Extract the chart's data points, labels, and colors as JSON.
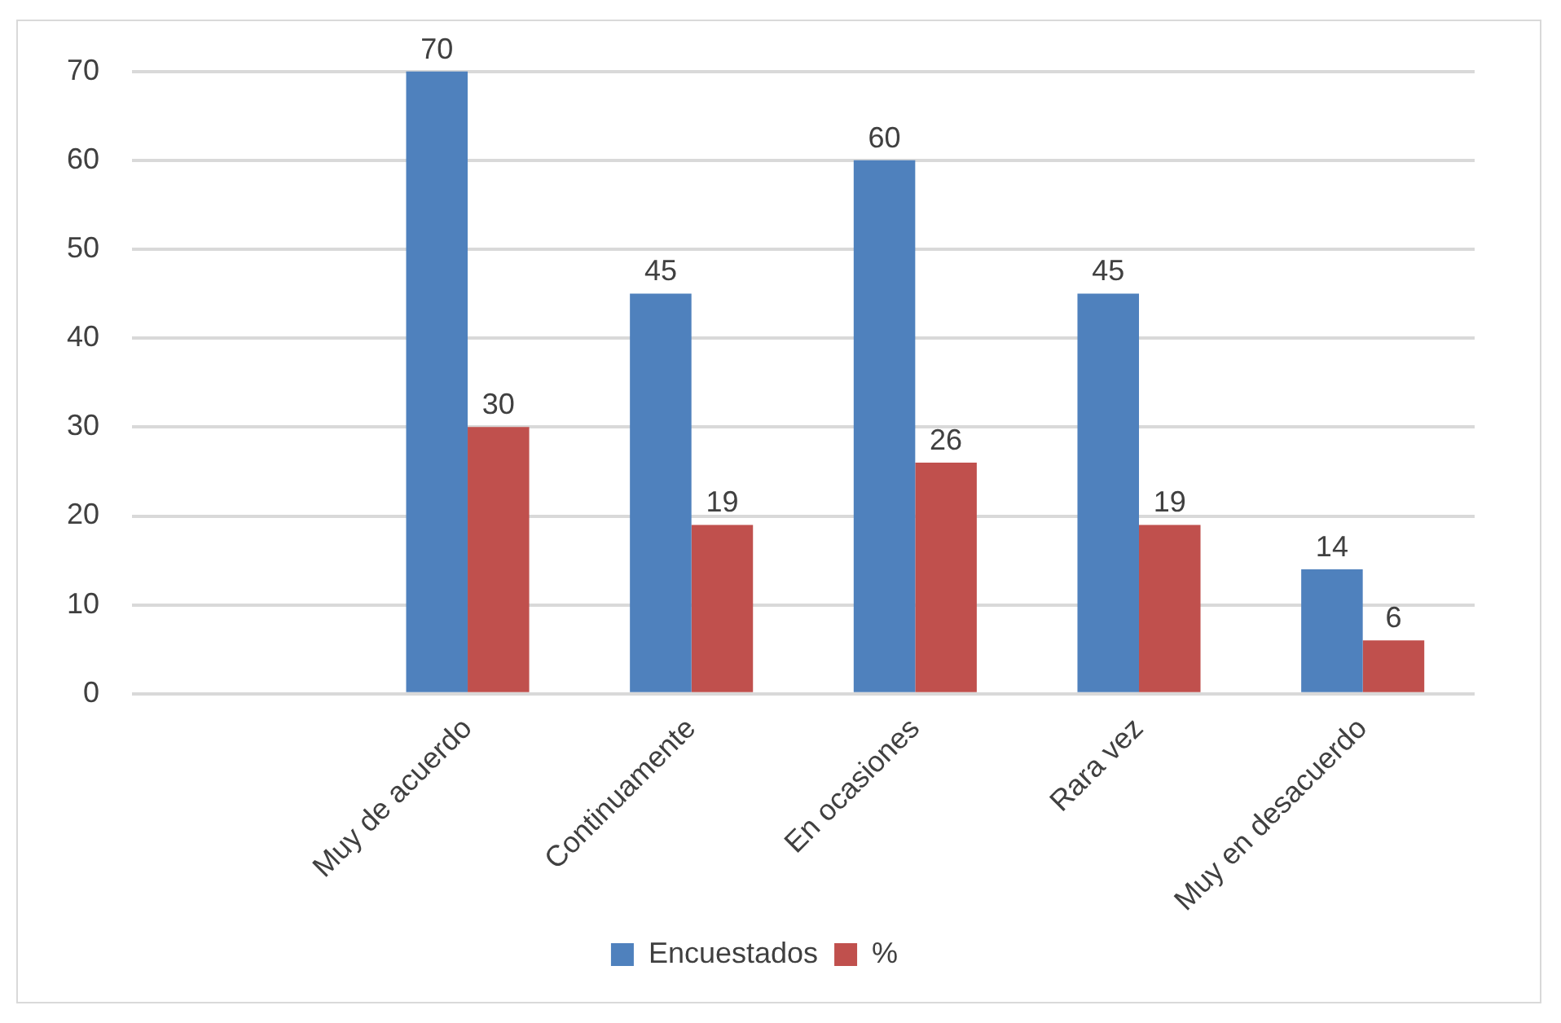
{
  "chart_data": {
    "type": "bar",
    "categories": [
      null,
      "Muy de acuerdo",
      "Continuamente",
      "En ocasiones",
      "Rara vez",
      "Muy en desacuerdo"
    ],
    "series": [
      {
        "name": "Encuestados",
        "color": "#4f81bd",
        "values": [
          null,
          70,
          45,
          60,
          45,
          14
        ]
      },
      {
        "name": "%",
        "color": "#c0504d",
        "values": [
          null,
          30,
          19,
          26,
          19,
          6
        ]
      }
    ],
    "ylim": [
      0,
      70
    ],
    "yticks": [
      0,
      10,
      20,
      30,
      40,
      50,
      60,
      70
    ],
    "grid": "y",
    "legend": "bottom",
    "data_labels": true
  }
}
